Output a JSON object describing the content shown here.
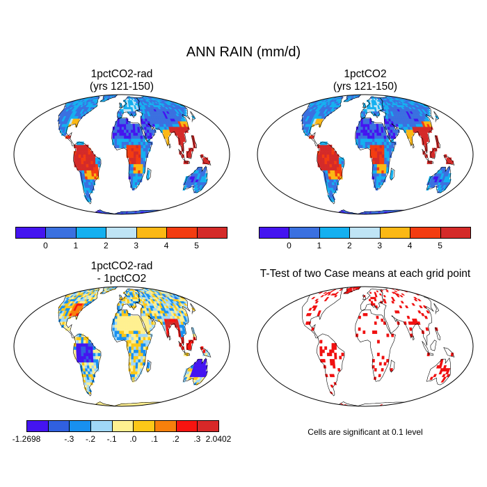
{
  "main_title": "ANN RAIN (mm/d)",
  "panels": {
    "top_left": {
      "title_line1": "1pctCO2-rad",
      "title_line2": "(yrs 121-150)"
    },
    "top_right": {
      "title_line1": "1pctCO2",
      "title_line2": "(yrs 121-150)"
    },
    "bottom_left": {
      "title_line1": "1pctCO2-rad",
      "title_line2": "- 1pctCO2"
    },
    "bottom_right": {
      "title_line1": "T-Test of two Case means at each grid point"
    }
  },
  "colorbar_abs": {
    "colors": [
      "#4414f0",
      "#3a70e0",
      "#14b0f0",
      "#bfe4f5",
      "#fbb814",
      "#f33c10",
      "#d42a28"
    ],
    "tick_labels": [
      "0",
      "1",
      "2",
      "3",
      "4",
      "5"
    ]
  },
  "colorbar_diff": {
    "colors": [
      "#4414f0",
      "#3060e0",
      "#1890f0",
      "#a0d8f8",
      "#fff090",
      "#fdc818",
      "#f8800c",
      "#f81410",
      "#d82828"
    ],
    "tick_labels": [
      "-1.2698",
      "-.3",
      "-.2",
      "-.1",
      ".0",
      ".1",
      ".2",
      ".3",
      "2.0402"
    ]
  },
  "significance_note": "Cells are significant at 0.1 level",
  "colors": {
    "significant_cell": "#f01010",
    "ocean": "#ffffff",
    "coastline": "#000000"
  }
}
